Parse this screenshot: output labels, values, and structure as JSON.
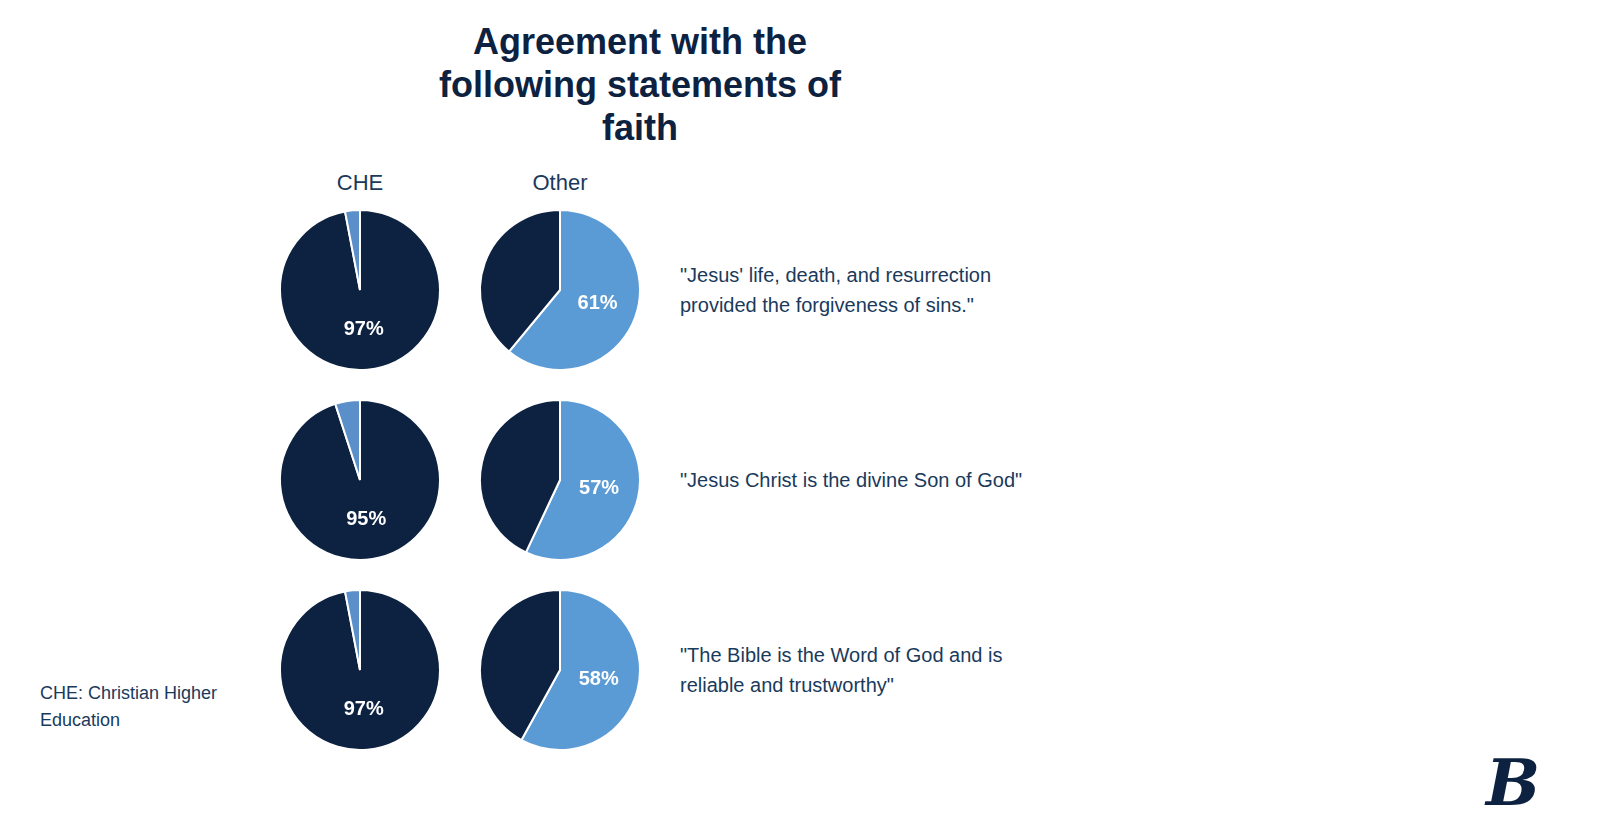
{
  "chart_data": {
    "type": "pie",
    "title": "Agreement with the\nfollowing statements of\nfaith",
    "categories": [
      "\"Jesus' life, death, and resurrection\nprovided the forgiveness of sins.\"",
      "\"Jesus Christ is the divine Son of God\"",
      "\"The Bible is the Word of God and is\nreliable and trustworthy\""
    ],
    "series": [
      {
        "name": "CHE",
        "colors": [
          "#0d2240",
          "#5b8fc9"
        ],
        "values": [
          [
            97,
            3
          ],
          [
            95,
            5
          ],
          [
            97,
            3
          ]
        ],
        "value_labels": [
          [
            "97%",
            null
          ],
          [
            "95%",
            null
          ],
          [
            "97%",
            null
          ]
        ]
      },
      {
        "name": "Other",
        "colors": [
          "#5b9bd5",
          "#0d2240"
        ],
        "values": [
          [
            61,
            39
          ],
          [
            57,
            43
          ],
          [
            58,
            42
          ]
        ],
        "value_labels": [
          [
            "61%",
            null
          ],
          [
            "57%",
            null
          ],
          [
            "58%",
            null
          ]
        ]
      }
    ],
    "data_labels": true,
    "annotations": [
      "CHE: Christian Higher\nEducation",
      "B"
    ]
  }
}
